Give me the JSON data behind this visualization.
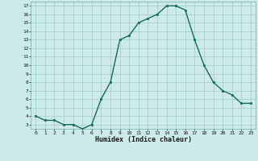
{
  "x": [
    0,
    1,
    2,
    3,
    4,
    5,
    6,
    7,
    8,
    9,
    10,
    11,
    12,
    13,
    14,
    15,
    16,
    17,
    18,
    19,
    20,
    21,
    22,
    23
  ],
  "y": [
    4.0,
    3.5,
    3.5,
    3.0,
    3.0,
    2.5,
    3.0,
    6.0,
    8.0,
    13.0,
    13.5,
    15.0,
    15.5,
    16.0,
    17.0,
    17.0,
    16.5,
    13.0,
    10.0,
    8.0,
    7.0,
    6.5,
    5.5,
    5.5
  ],
  "line_color": "#1a6b5a",
  "marker_color": "#1a6b5a",
  "bg_color": "#cceae8",
  "grid_color": "#aacfcc",
  "xlabel": "Humidex (Indice chaleur)",
  "yticks": [
    3,
    4,
    5,
    6,
    7,
    8,
    9,
    10,
    11,
    12,
    13,
    14,
    15,
    16,
    17
  ],
  "xlim": [
    -0.5,
    23.5
  ],
  "ylim": [
    2.5,
    17.5
  ]
}
